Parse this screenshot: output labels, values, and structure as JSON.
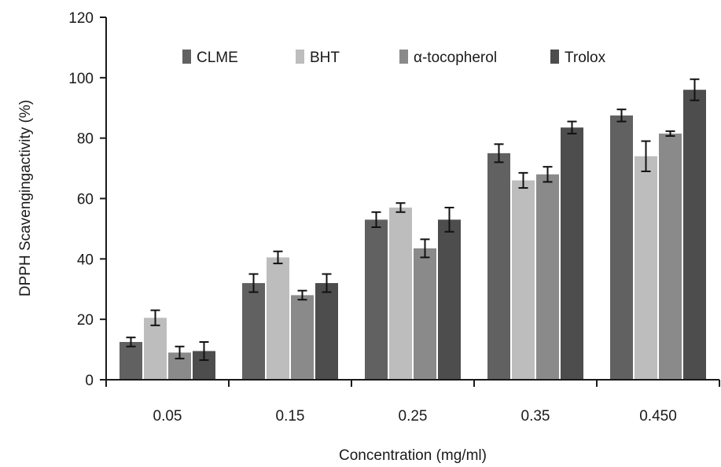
{
  "chart_data": {
    "type": "bar",
    "title": "",
    "xlabel": "Concentration (mg/ml)",
    "ylabel": "DPPH Scavengingactivity (%)",
    "categories": [
      "0.05",
      "0.15",
      "0.25",
      "0.35",
      "0.450"
    ],
    "ylim": [
      0,
      120
    ],
    "yticks": [
      "0",
      "20",
      "40",
      "60",
      "80",
      "100",
      "120"
    ],
    "grid": false,
    "legend_position": "top",
    "series": [
      {
        "name": "CLME",
        "color": "#616161",
        "values": [
          12.5,
          32,
          53,
          75,
          87.5
        ],
        "errors": [
          1.5,
          3,
          2.5,
          3,
          2
        ]
      },
      {
        "name": "BHT",
        "color": "#bdbdbd",
        "values": [
          20.5,
          40.5,
          57,
          66,
          74
        ],
        "errors": [
          2.5,
          2,
          1.5,
          2.5,
          5
        ]
      },
      {
        "name": "α-tocopherol",
        "color": "#8a8a8a",
        "values": [
          9,
          28,
          43.5,
          68,
          81.5
        ],
        "errors": [
          2,
          1.5,
          3,
          2.5,
          0.8
        ]
      },
      {
        "name": "Trolox",
        "color": "#4d4d4d",
        "values": [
          9.5,
          32,
          53,
          83.5,
          96
        ],
        "errors": [
          3,
          3,
          4,
          2,
          3.5
        ]
      }
    ]
  }
}
